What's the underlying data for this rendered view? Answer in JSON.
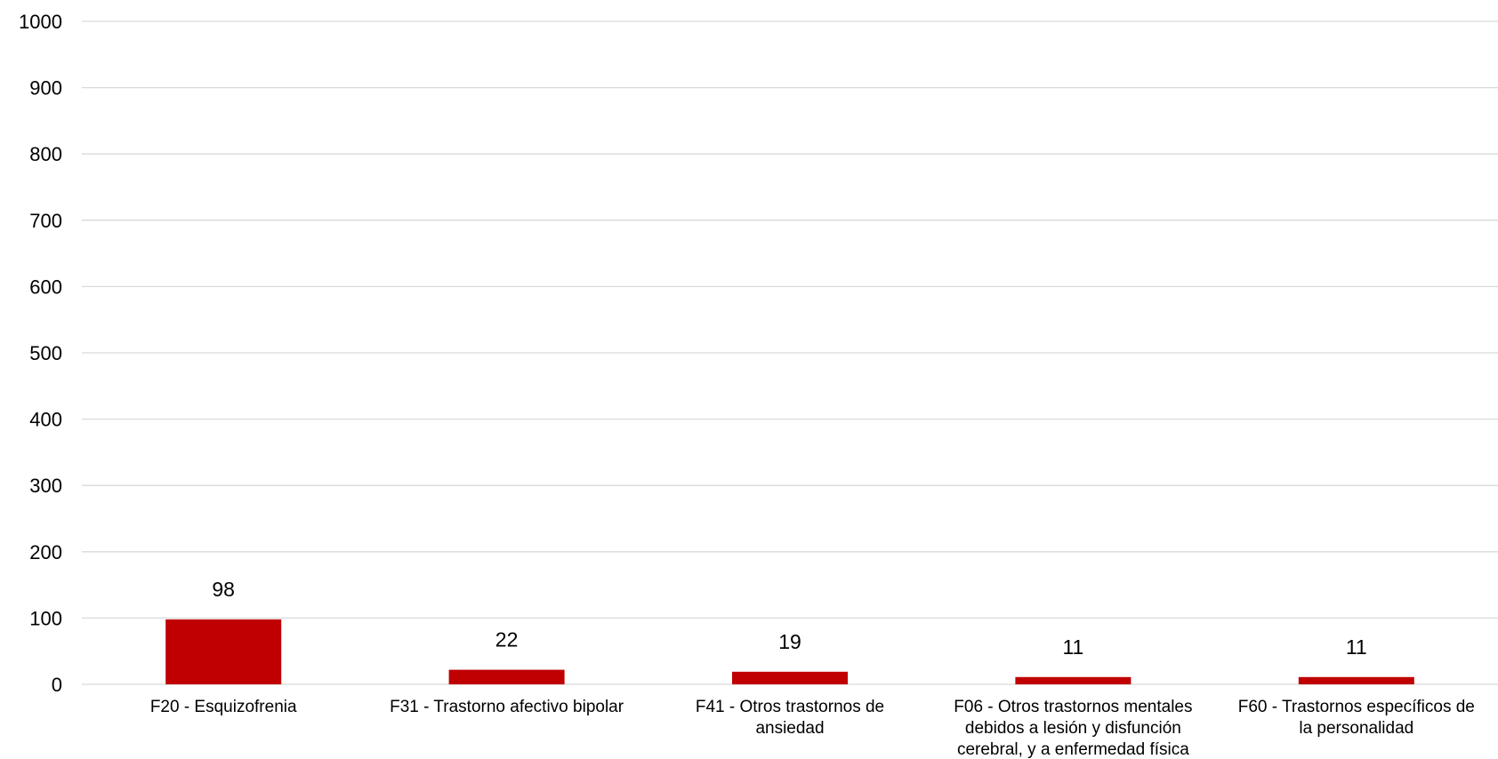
{
  "chart_data": {
    "type": "bar",
    "title": "",
    "xlabel": "",
    "ylabel": "",
    "ylim": [
      0,
      1000
    ],
    "yticks": [
      0,
      100,
      200,
      300,
      400,
      500,
      600,
      700,
      800,
      900,
      1000
    ],
    "grid": true,
    "legend": "none",
    "bar_color": "#c00000",
    "categories": [
      [
        "F20  - Esquizofrenia"
      ],
      [
        "F31  - Trastorno afectivo bipolar"
      ],
      [
        "F41  - Otros trastornos de",
        "ansiedad"
      ],
      [
        "F06  - Otros trastornos mentales",
        "debidos a lesión y disfunción",
        "cerebral, y a enfermedad física"
      ],
      [
        "F60  - Trastornos específicos de",
        "la personalidad"
      ]
    ],
    "values": [
      98,
      22,
      19,
      11,
      11
    ],
    "data_labels": [
      "98",
      "22",
      "19",
      "11",
      "11"
    ]
  }
}
